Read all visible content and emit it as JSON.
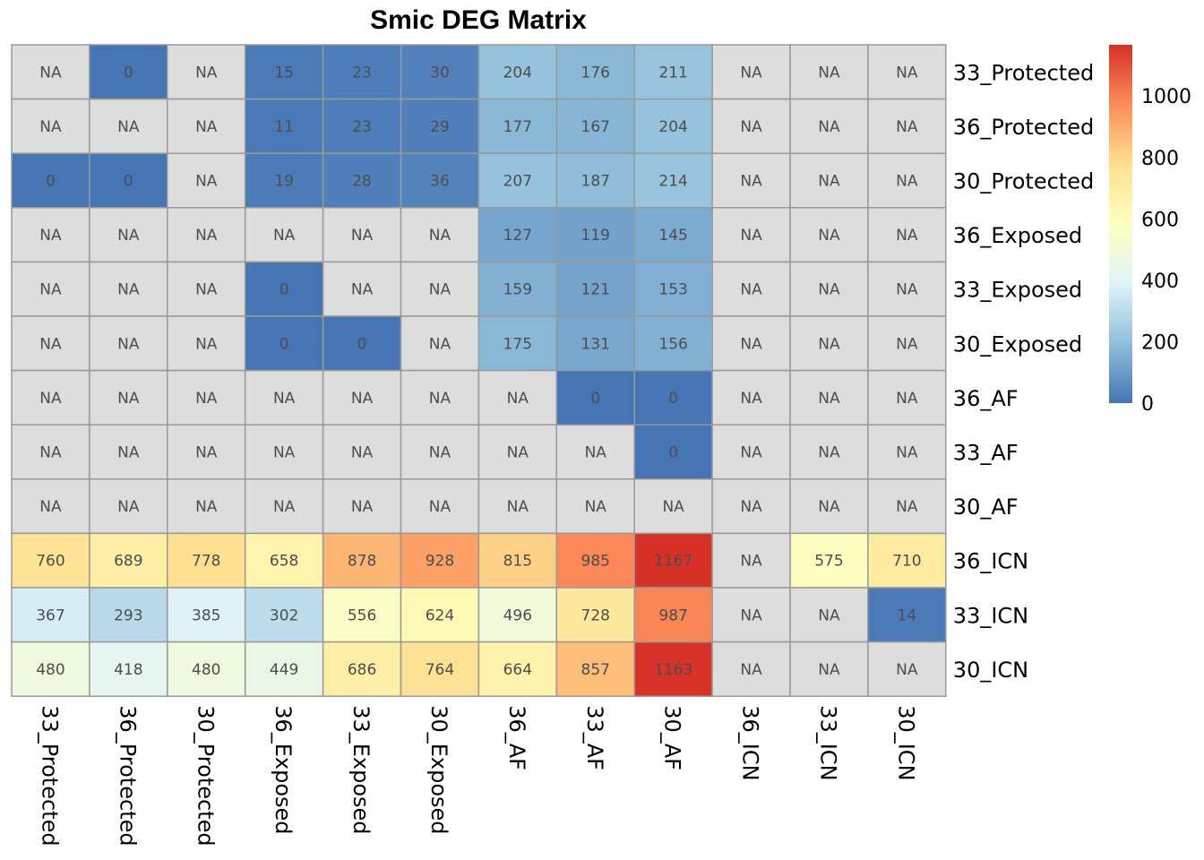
{
  "chart_data": {
    "type": "heatmap",
    "title": "Smic DEG Matrix",
    "rows": [
      "33_Protected",
      "36_Protected",
      "30_Protected",
      "36_Exposed",
      "33_Exposed",
      "30_Exposed",
      "36_AF",
      "33_AF",
      "30_AF",
      "36_ICN",
      "33_ICN",
      "30_ICN"
    ],
    "columns": [
      "33_Protected",
      "36_Protected",
      "30_Protected",
      "36_Exposed",
      "33_Exposed",
      "30_Exposed",
      "36_AF",
      "33_AF",
      "30_AF",
      "36_ICN",
      "33_ICN",
      "30_ICN"
    ],
    "values": [
      [
        null,
        0,
        null,
        15,
        23,
        30,
        204,
        176,
        211,
        null,
        null,
        null
      ],
      [
        null,
        null,
        null,
        11,
        23,
        29,
        177,
        167,
        204,
        null,
        null,
        null
      ],
      [
        0,
        0,
        null,
        19,
        28,
        36,
        207,
        187,
        214,
        null,
        null,
        null
      ],
      [
        null,
        null,
        null,
        null,
        null,
        null,
        127,
        119,
        145,
        null,
        null,
        null
      ],
      [
        null,
        null,
        null,
        0,
        null,
        null,
        159,
        121,
        153,
        null,
        null,
        null
      ],
      [
        null,
        null,
        null,
        0,
        0,
        null,
        175,
        131,
        156,
        null,
        null,
        null
      ],
      [
        null,
        null,
        null,
        null,
        null,
        null,
        null,
        0,
        0,
        null,
        null,
        null
      ],
      [
        null,
        null,
        null,
        null,
        null,
        null,
        null,
        null,
        0,
        null,
        null,
        null
      ],
      [
        null,
        null,
        null,
        null,
        null,
        null,
        null,
        null,
        null,
        null,
        null,
        null
      ],
      [
        760,
        689,
        778,
        658,
        878,
        928,
        815,
        985,
        1167,
        null,
        575,
        710
      ],
      [
        367,
        293,
        385,
        302,
        556,
        624,
        496,
        728,
        987,
        null,
        null,
        14
      ],
      [
        480,
        418,
        480,
        449,
        686,
        764,
        664,
        857,
        1163,
        null,
        null,
        null
      ]
    ],
    "na_label": "NA",
    "na_color": "#dddddd",
    "grid_color": "#999999",
    "color_scale": {
      "min": 0,
      "max": 1167,
      "colors": [
        "#4575b4",
        "#91bfdb",
        "#e0f3f8",
        "#ffffbf",
        "#fee090",
        "#fc8d59",
        "#d73027"
      ]
    },
    "legend": {
      "position": "right",
      "ticks": [
        0,
        200,
        400,
        600,
        800,
        1000
      ]
    }
  }
}
